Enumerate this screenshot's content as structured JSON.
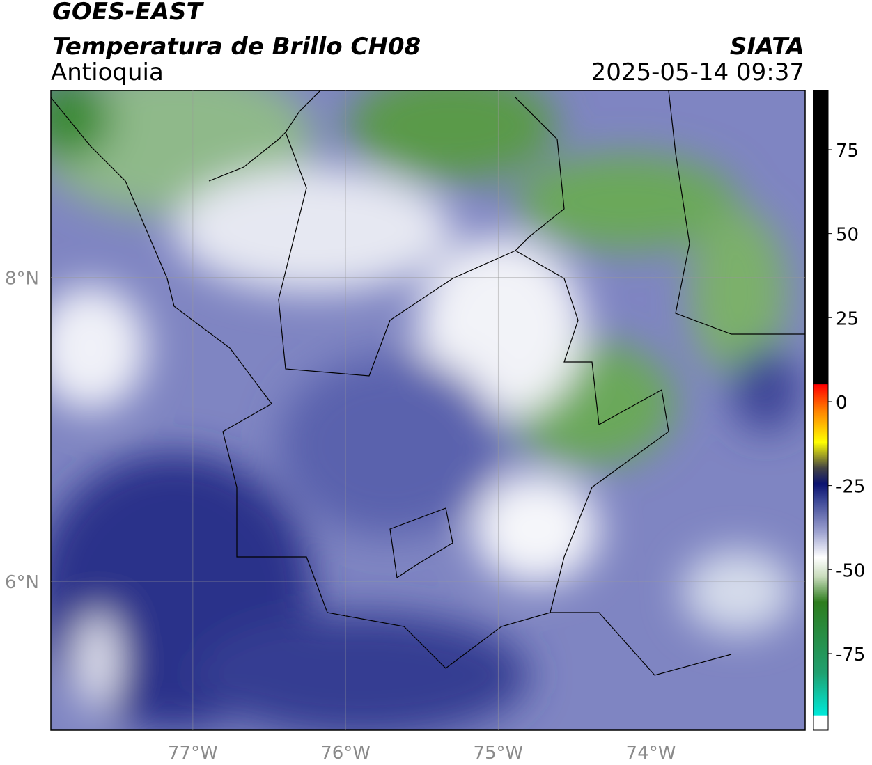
{
  "header": {
    "title": "GOES-EAST",
    "subtitle": "Temperatura de Brillo CH08",
    "region": "Antioquia",
    "source": "SIATA",
    "timestamp": "2025-05-14 09:37"
  },
  "map": {
    "xlim": [
      -77.93,
      -72.99
    ],
    "ylim": [
      5.02,
      9.23
    ],
    "xticks": [
      {
        "value": -77,
        "label": "77°W"
      },
      {
        "value": -76,
        "label": "76°W"
      },
      {
        "value": -75,
        "label": "75°W"
      },
      {
        "value": -74,
        "label": "74°W"
      }
    ],
    "yticks": [
      {
        "value": 8,
        "label": "8°N"
      },
      {
        "value": 6,
        "label": "6°N"
      }
    ],
    "grid": true
  },
  "colorbar": {
    "lim": [
      -97.8,
      92.6
    ],
    "ticks": [
      75,
      50,
      25,
      0,
      -25,
      -50,
      -75
    ]
  }
}
